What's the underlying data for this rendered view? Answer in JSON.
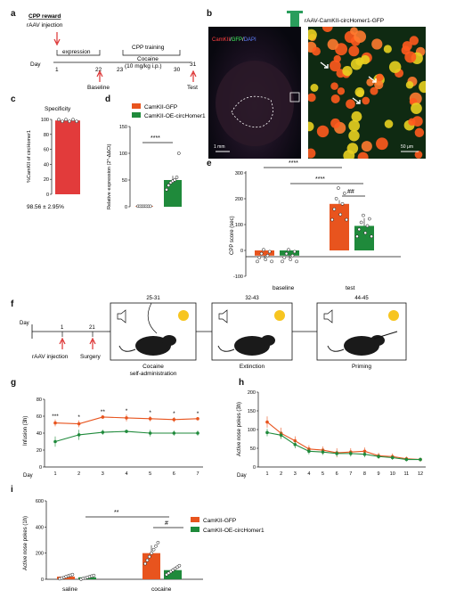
{
  "colors": {
    "gfp": "#e8541e",
    "oe": "#1f8a3b",
    "orange_dark": "#c9471a",
    "arrow_red": "#d33",
    "micro_bg": "#0b1020"
  },
  "panels": [
    "a",
    "b",
    "c",
    "d",
    "e",
    "f",
    "g",
    "h",
    "i"
  ],
  "a": {
    "cpp_reward": "CPP reward",
    "raav": "rAAV injection",
    "expression": "expression",
    "cpp_training": "CPP training",
    "cocaine": "Cocaine",
    "dose": "(10 mg/kg i.p.)",
    "day": "Day",
    "d1": "1",
    "d22": "22",
    "d23": "23",
    "d30": "30",
    "d31": "31",
    "baseline": "Baseline",
    "test": "Test"
  },
  "b": {
    "construct": "rAAV-CamKII-circHomer1-GFP",
    "stain_a": "CamKII",
    "stain_b": "GFP",
    "stain_c": "DAPI",
    "scale1": "1 mm",
    "scale2": "50 μm"
  },
  "c": {
    "title": "Specificity",
    "ylabel": "%CamKII of circHomer1",
    "stat": "98.56 ± 2.95%",
    "yticks": [
      "0",
      "20",
      "40",
      "60",
      "80",
      "100"
    ]
  },
  "d": {
    "legend": [
      "CamKII-GFP",
      "CamKII-OE-circHomer1"
    ],
    "ylabel": "Relative expression (2^-ΔΔCt)",
    "sig": "****",
    "yticks": [
      "0",
      "50",
      "100",
      "150"
    ]
  },
  "e": {
    "ylabel": "CPP score (sec)",
    "xlabels": [
      "baseline",
      "test"
    ],
    "sig1": "****",
    "sig2": "****",
    "sig3": "##",
    "yticks": [
      "-100",
      "0",
      "100",
      "200",
      "300"
    ]
  },
  "f": {
    "day": "Day",
    "d1": "1",
    "d21": "21",
    "raav": "rAAV injection",
    "surgery": "Surgery",
    "phases": [
      {
        "days": "25-31",
        "label": "Cocaine self-administration"
      },
      {
        "days": "32-43",
        "label": "Extinction"
      },
      {
        "days": "44-45",
        "label": "Priming"
      }
    ]
  },
  "g": {
    "ylabel": "Infusion (3h)",
    "xlabel": "Day",
    "yticks": [
      "0",
      "20",
      "40",
      "60",
      "80"
    ],
    "sig": [
      "***",
      "*",
      "**",
      "*",
      "*",
      "*",
      "*"
    ]
  },
  "h": {
    "ylabel": "Active nose pokes (3h)",
    "xlabel": "Day",
    "yticks": [
      "0",
      "50",
      "100",
      "150",
      "200"
    ]
  },
  "i": {
    "ylabel": "Active nose pokes (1h)",
    "xlabels": [
      "saline",
      "cocaine"
    ],
    "sig1": "**",
    "sig2": "#",
    "legend": [
      "CamKII-GFP",
      "CamKII-OE-circHomer1"
    ],
    "yticks": [
      "0",
      "200",
      "400",
      "600"
    ]
  },
  "chart_data": [
    {
      "panel": "c",
      "type": "bar",
      "title": "Specificity",
      "categories": [
        ""
      ],
      "values": [
        98.56
      ],
      "error": [
        2.95
      ],
      "ylabel": "%CamKII of circHomer1",
      "ylim": [
        0,
        100
      ]
    },
    {
      "panel": "d",
      "type": "bar",
      "categories": [
        "CamKII-GFP",
        "CamKII-OE-circHomer1"
      ],
      "values": [
        1,
        50
      ],
      "error": [
        0.5,
        8
      ],
      "points": [
        [
          1,
          1,
          1,
          1,
          1,
          1,
          1
        ],
        [
          32,
          40,
          45,
          48,
          50,
          55,
          100
        ]
      ],
      "ylabel": "Relative expression (2^-ΔΔCt)",
      "ylim": [
        0,
        150
      ]
    },
    {
      "panel": "e",
      "type": "bar",
      "categories": [
        "baseline",
        "test"
      ],
      "series": [
        {
          "name": "CamKII-GFP",
          "values": [
            -20,
            180
          ],
          "error": [
            10,
            15
          ]
        },
        {
          "name": "CamKII-OE-circHomer1",
          "values": [
            -20,
            95
          ],
          "error": [
            10,
            30
          ]
        }
      ],
      "ylabel": "CPP score (sec)",
      "ylim": [
        -100,
        300
      ]
    },
    {
      "panel": "g",
      "type": "line",
      "x": [
        1,
        2,
        3,
        4,
        5,
        6,
        7
      ],
      "series": [
        {
          "name": "CamKII-GFP",
          "values": [
            52,
            51,
            59,
            58,
            57,
            56,
            57
          ],
          "error": [
            4,
            4,
            2,
            4,
            3,
            3,
            2
          ]
        },
        {
          "name": "CamKII-OE-circHomer1",
          "values": [
            30,
            38,
            41,
            42,
            40,
            40,
            40
          ],
          "error": [
            6,
            6,
            3,
            2,
            4,
            3,
            3
          ]
        }
      ],
      "ylabel": "Infusion (3h)",
      "xlabel": "Day",
      "ylim": [
        0,
        80
      ]
    },
    {
      "panel": "h",
      "type": "line",
      "x": [
        1,
        2,
        3,
        4,
        5,
        6,
        7,
        8,
        9,
        10,
        11,
        12
      ],
      "series": [
        {
          "name": "CamKII-GFP",
          "values": [
            120,
            90,
            70,
            48,
            45,
            38,
            40,
            42,
            30,
            28,
            22,
            20
          ],
          "error": [
            15,
            15,
            12,
            10,
            10,
            12,
            10,
            10,
            8,
            8,
            6,
            5
          ]
        },
        {
          "name": "CamKII-OE-circHomer1",
          "values": [
            92,
            85,
            60,
            42,
            40,
            36,
            36,
            34,
            28,
            25,
            20,
            20
          ],
          "error": [
            10,
            10,
            10,
            8,
            8,
            8,
            8,
            8,
            6,
            6,
            5,
            5
          ]
        }
      ],
      "ylabel": "Active nose pokes (3h)",
      "xlabel": "Day",
      "ylim": [
        0,
        200
      ]
    },
    {
      "panel": "i",
      "type": "bar",
      "categories": [
        "saline",
        "cocaine"
      ],
      "series": [
        {
          "name": "CamKII-GFP",
          "values": [
            20,
            200
          ],
          "error": [
            8,
            60
          ]
        },
        {
          "name": "CamKII-OE-circHomer1",
          "values": [
            15,
            70
          ],
          "error": [
            5,
            15
          ]
        }
      ],
      "ylabel": "Active nose pokes (1h)",
      "ylim": [
        0,
        600
      ]
    }
  ]
}
